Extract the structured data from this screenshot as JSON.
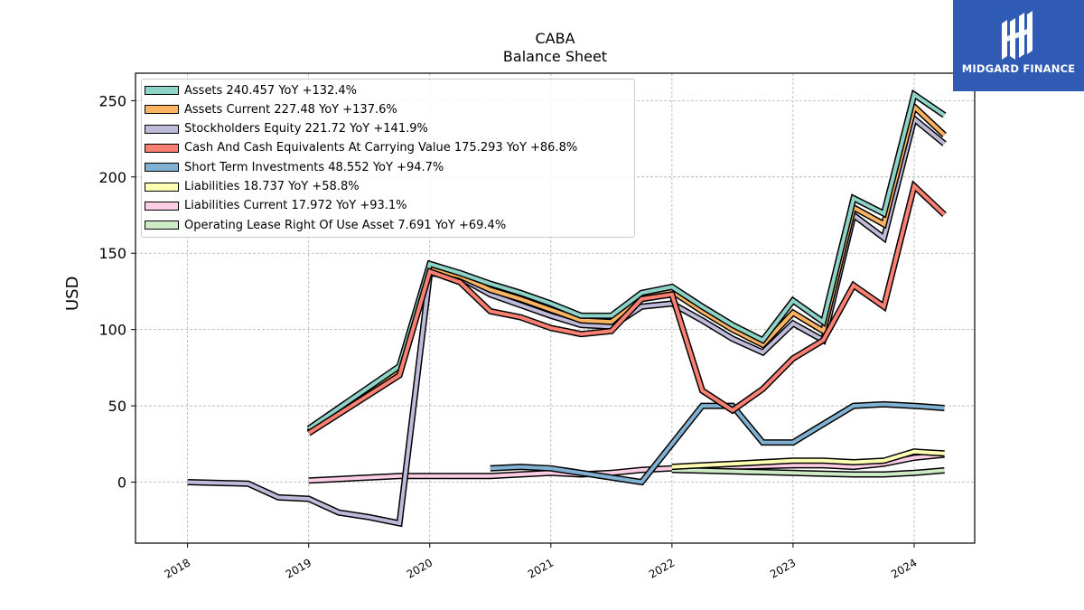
{
  "header": {
    "title_line1": "CABA",
    "title_line2": "Balance  Sheet"
  },
  "brand": {
    "name": "MIDGARD FINANCE",
    "color": "#2f5bb5"
  },
  "chart_data": {
    "type": "line",
    "ylabel": "USD",
    "xlabel": "",
    "x_tick_labels": [
      "2018",
      "2019",
      "2020",
      "2021",
      "2022",
      "2023",
      "2024"
    ],
    "y_tick_labels": [
      "0",
      "50",
      "100",
      "150",
      "200",
      "250"
    ],
    "xlim": [
      2017.57,
      2024.5
    ],
    "ylim": [
      -40,
      268
    ],
    "grid": true,
    "legend_position": "top-left",
    "series": [
      {
        "name": "Assets  240.457 YoY +132.4%",
        "color": "#8dd3c7",
        "points": [
          [
            2019.0,
            35
          ],
          [
            2019.75,
            76
          ],
          [
            2020.0,
            143
          ],
          [
            2020.25,
            137
          ],
          [
            2020.5,
            130
          ],
          [
            2020.75,
            124
          ],
          [
            2021.0,
            117
          ],
          [
            2021.25,
            109
          ],
          [
            2021.5,
            109
          ],
          [
            2021.75,
            124
          ],
          [
            2022.0,
            128
          ],
          [
            2022.25,
            115
          ],
          [
            2022.5,
            103
          ],
          [
            2022.75,
            93
          ],
          [
            2023.0,
            119
          ],
          [
            2023.25,
            105
          ],
          [
            2023.5,
            186
          ],
          [
            2023.75,
            176
          ],
          [
            2024.0,
            254
          ],
          [
            2024.25,
            240.457
          ]
        ]
      },
      {
        "name": "Assets Current  227.48 YoY +137.6%",
        "color": "#fdb462",
        "points": [
          [
            2019.0,
            33
          ],
          [
            2019.75,
            74
          ],
          [
            2020.0,
            140
          ],
          [
            2020.25,
            135
          ],
          [
            2020.5,
            126
          ],
          [
            2020.75,
            120
          ],
          [
            2021.0,
            113
          ],
          [
            2021.25,
            106
          ],
          [
            2021.5,
            105
          ],
          [
            2021.75,
            122
          ],
          [
            2022.0,
            125
          ],
          [
            2022.25,
            112
          ],
          [
            2022.5,
            100
          ],
          [
            2022.75,
            90
          ],
          [
            2023.0,
            111
          ],
          [
            2023.25,
            99
          ],
          [
            2023.5,
            180
          ],
          [
            2023.75,
            169
          ],
          [
            2024.0,
            246
          ],
          [
            2024.25,
            227.48
          ]
        ]
      },
      {
        "name": "Stockholders Equity  221.72 YoY +141.9%",
        "color": "#bebada",
        "points": [
          [
            2018.0,
            0
          ],
          [
            2018.5,
            -1
          ],
          [
            2018.75,
            -10
          ],
          [
            2019.0,
            -11
          ],
          [
            2019.25,
            -20
          ],
          [
            2019.5,
            -23
          ],
          [
            2019.75,
            -27
          ],
          [
            2020.0,
            137
          ],
          [
            2020.25,
            134
          ],
          [
            2020.5,
            123
          ],
          [
            2020.75,
            116
          ],
          [
            2021.0,
            109
          ],
          [
            2021.25,
            103
          ],
          [
            2021.5,
            102
          ],
          [
            2021.75,
            115
          ],
          [
            2022.0,
            117
          ],
          [
            2022.25,
            106
          ],
          [
            2022.5,
            94
          ],
          [
            2022.75,
            85
          ],
          [
            2023.0,
            104
          ],
          [
            2023.25,
            93
          ],
          [
            2023.5,
            175
          ],
          [
            2023.75,
            160
          ],
          [
            2024.0,
            238
          ],
          [
            2024.25,
            221.72
          ]
        ]
      },
      {
        "name": "Cash And Cash Equivalents At Carrying Value  175.293 YoY +86.8%",
        "color": "#fb8072",
        "points": [
          [
            2019.0,
            32
          ],
          [
            2019.75,
            70
          ],
          [
            2020.0,
            138
          ],
          [
            2020.25,
            131
          ],
          [
            2020.5,
            112
          ],
          [
            2020.75,
            108
          ],
          [
            2021.0,
            101
          ],
          [
            2021.25,
            97
          ],
          [
            2021.5,
            99
          ],
          [
            2021.75,
            120
          ],
          [
            2022.0,
            123
          ],
          [
            2022.25,
            60
          ],
          [
            2022.5,
            47
          ],
          [
            2022.75,
            61
          ],
          [
            2023.0,
            81
          ],
          [
            2023.25,
            93
          ],
          [
            2023.5,
            129
          ],
          [
            2023.75,
            115
          ],
          [
            2024.0,
            194
          ],
          [
            2024.25,
            175.293
          ]
        ]
      },
      {
        "name": "Short Term Investments  48.552 YoY +94.7%",
        "color": "#80b1d3",
        "points": [
          [
            2020.5,
            9
          ],
          [
            2020.75,
            10
          ],
          [
            2021.0,
            9
          ],
          [
            2021.25,
            6
          ],
          [
            2021.5,
            3
          ],
          [
            2021.75,
            0
          ],
          [
            2022.0,
            25
          ],
          [
            2022.25,
            50
          ],
          [
            2022.5,
            50
          ],
          [
            2022.75,
            26
          ],
          [
            2023.0,
            26
          ],
          [
            2023.25,
            38
          ],
          [
            2023.5,
            50
          ],
          [
            2023.75,
            51
          ],
          [
            2024.0,
            50
          ],
          [
            2024.25,
            48.552
          ]
        ]
      },
      {
        "name": "Liabilities  18.737 YoY +58.8%",
        "color": "#ffffb3",
        "points": [
          [
            2022.0,
            10
          ],
          [
            2022.5,
            12
          ],
          [
            2023.0,
            14
          ],
          [
            2023.25,
            14
          ],
          [
            2023.5,
            13
          ],
          [
            2023.75,
            14
          ],
          [
            2024.0,
            20
          ],
          [
            2024.25,
            18.737
          ]
        ]
      },
      {
        "name": "Liabilities Current  17.972 YoY +93.1%",
        "color": "#fccde5",
        "points": [
          [
            2019.0,
            1
          ],
          [
            2019.5,
            3
          ],
          [
            2019.75,
            4
          ],
          [
            2020.0,
            4
          ],
          [
            2020.5,
            4
          ],
          [
            2021.0,
            6
          ],
          [
            2021.25,
            5
          ],
          [
            2021.5,
            6
          ],
          [
            2021.75,
            8
          ],
          [
            2022.0,
            9
          ],
          [
            2023.0,
            11
          ],
          [
            2023.25,
            11
          ],
          [
            2023.5,
            10
          ],
          [
            2023.75,
            12
          ],
          [
            2024.0,
            16
          ],
          [
            2024.25,
            17.972
          ]
        ]
      },
      {
        "name": "Operating Lease Right Of Use Asset  7.691 YoY +69.4%",
        "color": "#ccebc5",
        "points": [
          [
            2022.0,
            8
          ],
          [
            2022.5,
            7
          ],
          [
            2023.0,
            6
          ],
          [
            2023.5,
            5
          ],
          [
            2023.75,
            5
          ],
          [
            2024.0,
            6
          ],
          [
            2024.25,
            7.691
          ]
        ]
      }
    ]
  }
}
